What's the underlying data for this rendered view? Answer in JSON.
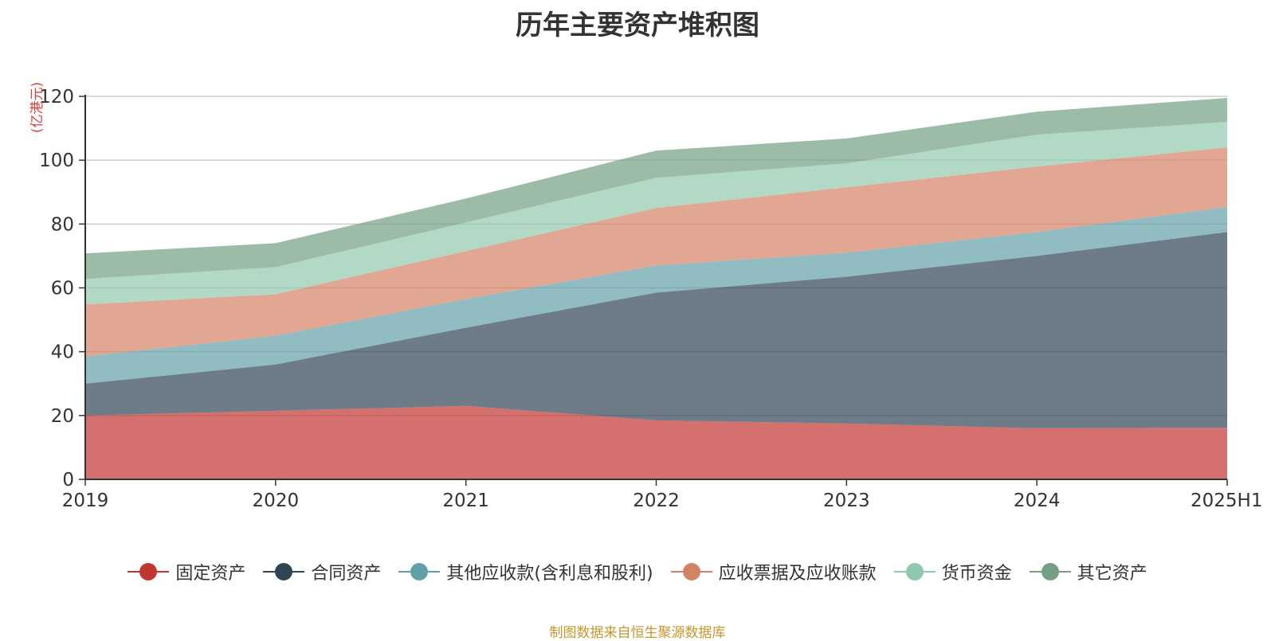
{
  "chart_data": {
    "type": "area",
    "stacked": true,
    "title": "历年主要资产堆积图",
    "ylabel": "(亿港元)",
    "xlabel": "",
    "x": [
      "2019",
      "2020",
      "2021",
      "2022",
      "2023",
      "2024",
      "2025H1"
    ],
    "ylim": [
      0,
      120
    ],
    "yticks": [
      0,
      20,
      40,
      60,
      80,
      100,
      120
    ],
    "grid": true,
    "legend_position": "bottom",
    "series": [
      {
        "name": "固定资产",
        "color": "#c23531",
        "values": [
          20,
          21.5,
          23,
          18.5,
          17.5,
          16,
          16.2
        ]
      },
      {
        "name": "合同资产",
        "color": "#2f4554",
        "values": [
          10,
          14.5,
          24.5,
          40,
          46,
          54,
          61.3
        ]
      },
      {
        "name": "其他应收款(含利息和股利)",
        "color": "#61a0a8",
        "values": [
          8.5,
          9,
          9,
          8.5,
          7.5,
          7.5,
          7.8
        ]
      },
      {
        "name": "应收票据及应收账款",
        "color": "#d48265",
        "values": [
          16.3,
          13,
          15,
          18,
          20.5,
          20.5,
          18.7
        ]
      },
      {
        "name": "货币资金",
        "color": "#91c7ae",
        "values": [
          8,
          8.5,
          9,
          9.5,
          7.5,
          10,
          8
        ]
      },
      {
        "name": "其它资产",
        "color": "#749f83",
        "values": [
          8,
          7.5,
          7.5,
          8.5,
          7.8,
          7.2,
          7.5
        ]
      }
    ]
  },
  "source_note": "制图数据来自恒生聚源数据库"
}
